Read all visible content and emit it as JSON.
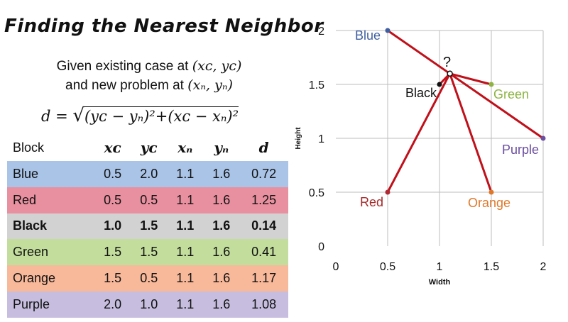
{
  "title": "Finding the Nearest Neighbor",
  "given": {
    "line1_text": "Given existing case at ",
    "line1_math": "(xᴄ, yᴄ)",
    "line2_text": "and new problem at ",
    "line2_math": "(xₙ, yₙ)"
  },
  "formula": {
    "lhs": "d = ",
    "sqrt": "√",
    "radicand": "(yᴄ − yₙ)²+(xᴄ − xₙ)²"
  },
  "table": {
    "headers": [
      "Block",
      "xᴄ",
      "yᴄ",
      "xₙ",
      "yₙ",
      "d"
    ],
    "rows": [
      {
        "cells": [
          "Blue",
          "0.5",
          "2.0",
          "1.1",
          "1.6",
          "0.72"
        ],
        "bg": "#a9c4e7",
        "bold": false
      },
      {
        "cells": [
          "Red",
          "0.5",
          "0.5",
          "1.1",
          "1.6",
          "1.25"
        ],
        "bg": "#e8909f",
        "bold": false
      },
      {
        "cells": [
          "Black",
          "1.0",
          "1.5",
          "1.1",
          "1.6",
          "0.14"
        ],
        "bg": "#d2d2d2",
        "bold": true
      },
      {
        "cells": [
          "Green",
          "1.5",
          "1.5",
          "1.1",
          "1.6",
          "0.41"
        ],
        "bg": "#c2dd9c",
        "bold": false
      },
      {
        "cells": [
          "Orange",
          "1.5",
          "0.5",
          "1.1",
          "1.6",
          "1.17"
        ],
        "bg": "#f8b89a",
        "bold": false
      },
      {
        "cells": [
          "Purple",
          "2.0",
          "1.0",
          "1.1",
          "1.6",
          "1.08"
        ],
        "bg": "#c7bedf",
        "bold": false
      }
    ],
    "header_bg": "#ffffff"
  },
  "chart_data": {
    "type": "scatter",
    "xlabel": "Width",
    "ylabel": "Height",
    "xlim": [
      0,
      2
    ],
    "ylim": [
      0,
      2
    ],
    "xticks": [
      "0",
      "0.5",
      "1",
      "1.5",
      "2"
    ],
    "yticks": [
      "0",
      "0.5",
      "1",
      "1.5",
      "2"
    ],
    "grid": true,
    "query": {
      "label": "?",
      "x": 1.1,
      "y": 1.6
    },
    "points": [
      {
        "name": "Blue",
        "x": 0.5,
        "y": 2.0,
        "color": "#3f5fa0",
        "label_color": "#3f5fa0"
      },
      {
        "name": "Black",
        "x": 1.0,
        "y": 1.5,
        "color": "#111111",
        "label_color": "#111111"
      },
      {
        "name": "Green",
        "x": 1.5,
        "y": 1.5,
        "color": "#8db443",
        "label_color": "#8db443"
      },
      {
        "name": "Purple",
        "x": 2.0,
        "y": 1.0,
        "color": "#6b4fa0",
        "label_color": "#6b4fa0"
      },
      {
        "name": "Red",
        "x": 0.5,
        "y": 0.5,
        "color": "#b02a35",
        "label_color": "#a52a2a"
      },
      {
        "name": "Orange",
        "x": 1.5,
        "y": 0.5,
        "color": "#e0782a",
        "label_color": "#e0782a"
      }
    ],
    "line_color": "#c0101a"
  }
}
